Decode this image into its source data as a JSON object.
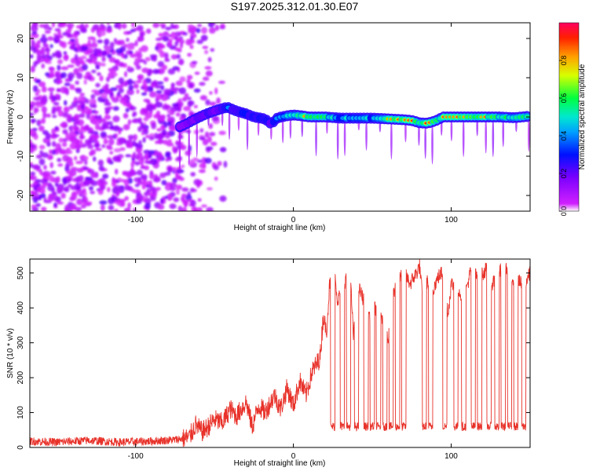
{
  "title": "S197.2025.312.01.30.E07",
  "chart_data": [
    {
      "type": "heatmap",
      "xlabel": "Height of straight line (km)",
      "ylabel": "Frequency (Hz)",
      "xlim": [
        -167,
        150
      ],
      "ylim": [
        -24,
        24
      ],
      "xticks": [
        -100,
        0,
        100
      ],
      "yticks": [
        -20,
        -10,
        0,
        10,
        20
      ],
      "colorbar": {
        "label": "Normalized spectral amplitude",
        "range": [
          0,
          1
        ],
        "ticks": [
          0.0,
          0.2,
          0.4,
          0.6,
          0.8
        ],
        "colormap": "rainbow (magenta-blue-cyan-green-yellow-red)"
      },
      "noise_region_x": [
        -167,
        -72
      ],
      "ridge": {
        "x": [
          -72,
          -68,
          -62,
          -55,
          -48,
          -42,
          -36,
          -30,
          -25,
          -18,
          -14,
          -10,
          -4,
          0,
          5,
          10,
          20,
          30,
          40,
          50,
          60,
          70,
          75,
          80,
          85,
          90,
          95,
          100,
          110,
          120,
          130,
          140,
          150
        ],
        "freq": [
          -2.5,
          -1.8,
          -0.5,
          0.8,
          1.8,
          2.5,
          1.5,
          0.8,
          0.0,
          -0.5,
          -1.8,
          -0.2,
          0.3,
          0.5,
          0.3,
          0.0,
          0.0,
          -0.3,
          -0.3,
          -0.3,
          -0.5,
          -0.7,
          -0.9,
          -1.5,
          -1.6,
          -1.0,
          0.0,
          0.0,
          0.0,
          0.0,
          0.0,
          -0.2,
          0.2
        ],
        "amp": [
          0.25,
          0.3,
          0.35,
          0.4,
          0.35,
          0.5,
          0.45,
          0.5,
          0.5,
          0.45,
          0.4,
          0.55,
          0.6,
          0.65,
          0.75,
          0.9,
          0.7,
          0.6,
          0.65,
          0.6,
          0.8,
          0.95,
          0.95,
          0.85,
          0.95,
          0.7,
          0.9,
          0.85,
          0.9,
          0.85,
          0.8,
          0.75,
          0.65
        ]
      }
    },
    {
      "type": "line",
      "xlabel": "Height of straight line (km)",
      "ylabel": "SNR (10 * v/v)",
      "xlim": [
        -167,
        150
      ],
      "ylim": [
        0,
        540
      ],
      "xticks": [
        -100,
        0,
        100
      ],
      "yticks": [
        0,
        100,
        200,
        300,
        400,
        500
      ],
      "series": [
        {
          "name": "SNR",
          "color": "#e8322a",
          "x": [
            -167,
            -150,
            -130,
            -110,
            -90,
            -75,
            -66,
            -62,
            -58,
            -55,
            -50,
            -45,
            -40,
            -36,
            -30,
            -26,
            -22,
            -18,
            -12,
            -8,
            -4,
            0,
            4,
            8,
            12,
            15,
            17,
            19,
            21,
            23,
            26,
            28,
            33,
            36,
            38,
            41,
            44,
            48,
            52,
            56,
            58,
            60,
            62,
            64,
            67,
            70,
            74,
            78,
            80,
            82,
            84,
            88,
            92,
            96,
            98,
            100,
            104,
            108,
            112,
            114,
            118,
            122,
            126,
            130,
            134,
            138,
            142,
            146,
            150
          ],
          "y": [
            18,
            15,
            20,
            15,
            18,
            22,
            28,
            65,
            45,
            55,
            80,
            70,
            110,
            90,
            130,
            60,
            120,
            100,
            150,
            110,
            170,
            120,
            190,
            150,
            220,
            240,
            260,
            380,
            330,
            470,
            510,
            420,
            480,
            500,
            320,
            460,
            430,
            380,
            400,
            360,
            460,
            300,
            420,
            450,
            480,
            500,
            470,
            500,
            520,
            420,
            480,
            450,
            490,
            510,
            380,
            470,
            460,
            420,
            500,
            520,
            490,
            510,
            470,
            500,
            520,
            490,
            480,
            460,
            500
          ],
          "dropouts": {
            "x_centers": [
              25,
              31,
              35,
              40,
              46,
              50,
              54,
              58,
              62,
              66,
              70,
              83,
              87,
              96,
              103,
              108,
              114,
              118,
              124,
              129,
              133,
              137,
              141,
              146
            ],
            "level": 60
          },
          "noise_amplitude_below_x_20": 12
        }
      ]
    }
  ]
}
